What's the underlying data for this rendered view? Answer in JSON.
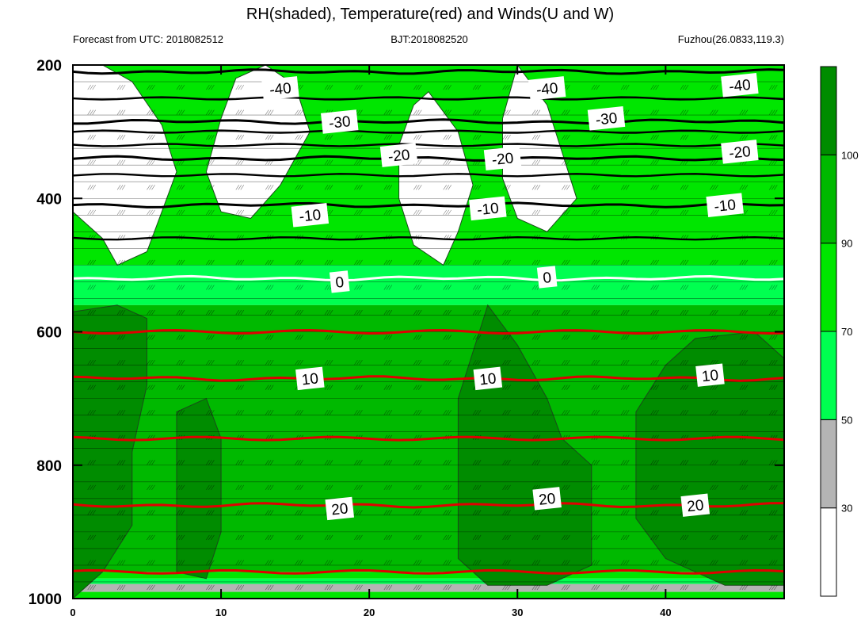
{
  "chart_data": {
    "type": "contour",
    "title": "RH(shaded), Temperature(red) and Winds(U and W)",
    "subtitle_left": "Forecast from UTC: 2018082512",
    "subtitle_center": "BJT:2018082520",
    "subtitle_right": "Fuzhou(26.0833,119.3)",
    "x_axis": {
      "range": [
        0,
        48
      ],
      "ticks": [
        0,
        10,
        20,
        30,
        40
      ],
      "labels": [
        "0",
        "10",
        "20",
        "30",
        "40"
      ]
    },
    "y_axis": {
      "range": [
        200,
        1000
      ],
      "reversed": true,
      "ticks": [
        200,
        400,
        600,
        800,
        1000
      ],
      "labels": [
        "200",
        "400",
        "600",
        "800",
        "1000"
      ]
    },
    "colorbar": {
      "levels": [
        30,
        50,
        70,
        90,
        100
      ],
      "labels": [
        "30",
        "50",
        "70",
        "90",
        "100"
      ],
      "colors": [
        "#ffffff",
        "#b4b4b4",
        "#00ff50",
        "#00e600",
        "#00b900",
        "#008c00"
      ]
    },
    "rh_regions": [
      {
        "name": "rh-dry-upper",
        "level": "<30",
        "polygon": [
          [
            2,
            200
          ],
          [
            4,
            225
          ],
          [
            6,
            290
          ],
          [
            7,
            360
          ],
          [
            6,
            420
          ],
          [
            5,
            480
          ],
          [
            3,
            500
          ],
          [
            2,
            460
          ],
          [
            0,
            420
          ],
          [
            0,
            200
          ]
        ]
      },
      {
        "name": "rh-dry-mid",
        "level": "<30",
        "polygon": [
          [
            13,
            200
          ],
          [
            15,
            230
          ],
          [
            16,
            300
          ],
          [
            14,
            380
          ],
          [
            12,
            430
          ],
          [
            10,
            420
          ],
          [
            9,
            360
          ],
          [
            10,
            280
          ],
          [
            11,
            220
          ]
        ]
      },
      {
        "name": "rh-dry-right",
        "level": "<30",
        "polygon": [
          [
            24,
            240
          ],
          [
            26,
            300
          ],
          [
            27,
            380
          ],
          [
            26,
            450
          ],
          [
            25,
            500
          ],
          [
            23,
            470
          ],
          [
            22,
            400
          ],
          [
            22,
            320
          ],
          [
            23,
            260
          ]
        ]
      },
      {
        "name": "rh-dry-far",
        "level": "<30",
        "polygon": [
          [
            30,
            200
          ],
          [
            32,
            260
          ],
          [
            33,
            330
          ],
          [
            34,
            400
          ],
          [
            32,
            450
          ],
          [
            30,
            430
          ],
          [
            29,
            370
          ],
          [
            29,
            280
          ]
        ]
      },
      {
        "name": "rh-moist-band-1",
        "level": "90-100",
        "polygon": [
          [
            0,
            570
          ],
          [
            3,
            560
          ],
          [
            5,
            580
          ],
          [
            5,
            680
          ],
          [
            4,
            780
          ],
          [
            4,
            890
          ],
          [
            2,
            960
          ],
          [
            0,
            1000
          ],
          [
            0,
            570
          ]
        ]
      },
      {
        "name": "rh-moist-band-2",
        "level": "90-100",
        "polygon": [
          [
            7,
            720
          ],
          [
            9,
            700
          ],
          [
            10,
            760
          ],
          [
            10,
            900
          ],
          [
            9,
            970
          ],
          [
            7,
            960
          ]
        ]
      },
      {
        "name": "rh-moist-band-3",
        "level": "90-100",
        "polygon": [
          [
            26,
            700
          ],
          [
            28,
            560
          ],
          [
            30,
            620
          ],
          [
            32,
            700
          ],
          [
            33,
            760
          ],
          [
            35,
            800
          ],
          [
            35,
            950
          ],
          [
            32,
            980
          ],
          [
            28,
            980
          ],
          [
            26,
            940
          ]
        ]
      },
      {
        "name": "rh-moist-band-4",
        "level": "90-100",
        "polygon": [
          [
            38,
            720
          ],
          [
            40,
            650
          ],
          [
            42,
            610
          ],
          [
            46,
            600
          ],
          [
            48,
            640
          ],
          [
            48,
            980
          ],
          [
            44,
            980
          ],
          [
            40,
            940
          ],
          [
            38,
            880
          ]
        ]
      }
    ],
    "temperature_isotherms": [
      {
        "value": "-40",
        "color": "#000000",
        "p": 210
      },
      {
        "value": "-30",
        "color": "#000000",
        "p": 285
      },
      {
        "value": "-20",
        "color": "#000000",
        "p": 340
      },
      {
        "value": "-10",
        "color": "#000000",
        "p": 410
      },
      {
        "value": "0",
        "color": "#ffffff",
        "p": 520
      },
      {
        "value": "10",
        "color": "#e00000",
        "p": 670
      },
      {
        "value": "20",
        "color": "#e00000",
        "p": 860
      }
    ],
    "contour_labels": [
      {
        "text": "-40",
        "x": 14,
        "p": 235
      },
      {
        "text": "-40",
        "x": 32,
        "p": 235
      },
      {
        "text": "-40",
        "x": 45,
        "p": 230
      },
      {
        "text": "-30",
        "x": 18,
        "p": 285
      },
      {
        "text": "-30",
        "x": 36,
        "p": 280
      },
      {
        "text": "-20",
        "x": 22,
        "p": 335
      },
      {
        "text": "-20",
        "x": 29,
        "p": 340
      },
      {
        "text": "-20",
        "x": 45,
        "p": 330
      },
      {
        "text": "-10",
        "x": 16,
        "p": 425
      },
      {
        "text": "-10",
        "x": 28,
        "p": 415
      },
      {
        "text": "-10",
        "x": 44,
        "p": 410
      },
      {
        "text": "0",
        "x": 18,
        "p": 525
      },
      {
        "text": "0",
        "x": 32,
        "p": 518
      },
      {
        "text": "10",
        "x": 16,
        "p": 670
      },
      {
        "text": "10",
        "x": 28,
        "p": 670
      },
      {
        "text": "10",
        "x": 43,
        "p": 665
      },
      {
        "text": "20",
        "x": 18,
        "p": 865
      },
      {
        "text": "20",
        "x": 32,
        "p": 850
      },
      {
        "text": "20",
        "x": 42,
        "p": 860
      }
    ]
  }
}
